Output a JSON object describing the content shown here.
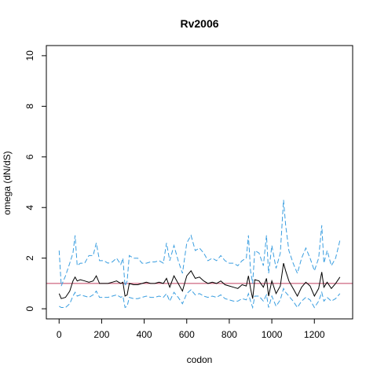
{
  "chart_data": {
    "type": "line",
    "title": "Rv2006",
    "xlabel": "codon",
    "ylabel": "omega (dN/dS)",
    "xlim": [
      -60,
      1380
    ],
    "ylim": [
      -0.4,
      10.4
    ],
    "xticks": [
      0,
      200,
      400,
      600,
      800,
      1000,
      1200
    ],
    "yticks": [
      0,
      2,
      4,
      6,
      8,
      10
    ],
    "reference_line": {
      "y": 1,
      "color": "#c04060"
    },
    "grid": false,
    "colors": {
      "mean": "#000000",
      "ci": "#3a9ee0"
    },
    "series": [
      {
        "role": "upper",
        "style": "dashed",
        "x": [
          0,
          10,
          30,
          50,
          65,
          75,
          85,
          100,
          120,
          140,
          160,
          175,
          190,
          210,
          230,
          250,
          270,
          290,
          300,
          310,
          320,
          330,
          350,
          370,
          390,
          410,
          430,
          450,
          470,
          490,
          505,
          520,
          540,
          560,
          580,
          600,
          620,
          640,
          660,
          680,
          700,
          720,
          740,
          760,
          780,
          800,
          820,
          840,
          860,
          880,
          890,
          900,
          910,
          920,
          940,
          960,
          975,
          985,
          1000,
          1020,
          1040,
          1055,
          1065,
          1080,
          1100,
          1120,
          1140,
          1160,
          1180,
          1200,
          1220,
          1235,
          1245,
          1260,
          1280,
          1300,
          1320
        ],
        "y": [
          2.3,
          0.9,
          1.3,
          1.8,
          2.2,
          2.9,
          1.7,
          1.8,
          1.8,
          2.1,
          2.1,
          2.6,
          1.9,
          1.9,
          1.8,
          1.85,
          2.0,
          1.75,
          2.0,
          0.9,
          1.1,
          2.1,
          2.0,
          2.0,
          1.8,
          1.8,
          1.85,
          1.85,
          1.9,
          1.8,
          2.6,
          1.9,
          2.5,
          1.9,
          1.4,
          2.6,
          2.9,
          2.3,
          2.4,
          2.2,
          1.9,
          2.0,
          1.9,
          2.1,
          1.9,
          1.8,
          1.8,
          1.7,
          1.9,
          2.0,
          2.9,
          1.5,
          1.0,
          2.3,
          2.2,
          1.7,
          2.9,
          1.4,
          2.5,
          1.6,
          2.2,
          4.3,
          3.3,
          2.3,
          1.8,
          1.4,
          2.0,
          2.4,
          2.0,
          1.5,
          2.0,
          3.3,
          1.8,
          2.3,
          1.7,
          2.0,
          2.7
        ]
      },
      {
        "role": "mean",
        "style": "solid",
        "x": [
          0,
          10,
          30,
          50,
          65,
          75,
          85,
          100,
          120,
          140,
          160,
          175,
          190,
          210,
          230,
          250,
          270,
          290,
          300,
          310,
          320,
          330,
          350,
          370,
          390,
          410,
          430,
          450,
          470,
          490,
          505,
          520,
          540,
          560,
          580,
          600,
          620,
          640,
          660,
          680,
          700,
          720,
          740,
          760,
          780,
          800,
          820,
          840,
          860,
          880,
          890,
          900,
          910,
          920,
          940,
          960,
          975,
          985,
          1000,
          1020,
          1040,
          1055,
          1065,
          1080,
          1100,
          1120,
          1140,
          1160,
          1180,
          1200,
          1220,
          1235,
          1245,
          1260,
          1280,
          1300,
          1320
        ],
        "y": [
          0.6,
          0.4,
          0.45,
          0.7,
          1.1,
          1.25,
          1.1,
          1.15,
          1.1,
          1.05,
          1.1,
          1.3,
          1.0,
          1.0,
          1.0,
          1.05,
          1.1,
          1.0,
          1.05,
          0.5,
          0.55,
          1.0,
          0.95,
          0.95,
          1.0,
          1.05,
          1.0,
          1.0,
          1.05,
          1.0,
          1.2,
          0.85,
          1.3,
          1.0,
          0.7,
          1.3,
          1.5,
          1.2,
          1.25,
          1.1,
          1.0,
          1.05,
          1.0,
          1.1,
          0.95,
          0.9,
          0.85,
          0.8,
          0.95,
          0.9,
          1.3,
          0.8,
          0.4,
          1.15,
          1.1,
          0.85,
          1.2,
          0.5,
          1.1,
          0.6,
          0.9,
          1.8,
          1.5,
          1.1,
          0.8,
          0.5,
          0.85,
          1.05,
          0.9,
          0.5,
          0.8,
          1.45,
          0.85,
          1.05,
          0.8,
          1.0,
          1.25
        ]
      },
      {
        "role": "lower",
        "style": "dashed",
        "x": [
          0,
          10,
          30,
          50,
          65,
          75,
          85,
          100,
          120,
          140,
          160,
          175,
          190,
          210,
          230,
          250,
          270,
          290,
          300,
          310,
          320,
          330,
          350,
          370,
          390,
          410,
          430,
          450,
          470,
          490,
          505,
          520,
          540,
          560,
          580,
          600,
          620,
          640,
          660,
          680,
          700,
          720,
          740,
          760,
          780,
          800,
          820,
          840,
          860,
          880,
          890,
          900,
          910,
          920,
          940,
          960,
          975,
          985,
          1000,
          1020,
          1040,
          1055,
          1065,
          1080,
          1100,
          1120,
          1140,
          1160,
          1180,
          1200,
          1220,
          1235,
          1245,
          1260,
          1280,
          1300,
          1320
        ],
        "y": [
          0.1,
          0.05,
          0.05,
          0.2,
          0.5,
          0.65,
          0.5,
          0.55,
          0.5,
          0.45,
          0.55,
          0.7,
          0.45,
          0.45,
          0.45,
          0.5,
          0.55,
          0.45,
          0.5,
          0.05,
          0.1,
          0.45,
          0.4,
          0.4,
          0.45,
          0.5,
          0.45,
          0.45,
          0.5,
          0.45,
          0.6,
          0.3,
          0.65,
          0.45,
          0.2,
          0.6,
          0.75,
          0.55,
          0.6,
          0.5,
          0.45,
          0.5,
          0.45,
          0.55,
          0.4,
          0.35,
          0.3,
          0.3,
          0.4,
          0.35,
          0.6,
          0.3,
          0.05,
          0.5,
          0.5,
          0.3,
          0.55,
          0.05,
          0.5,
          0.1,
          0.35,
          0.8,
          0.65,
          0.5,
          0.3,
          0.05,
          0.3,
          0.45,
          0.35,
          0.05,
          0.3,
          0.65,
          0.3,
          0.45,
          0.3,
          0.4,
          0.6
        ]
      }
    ]
  }
}
